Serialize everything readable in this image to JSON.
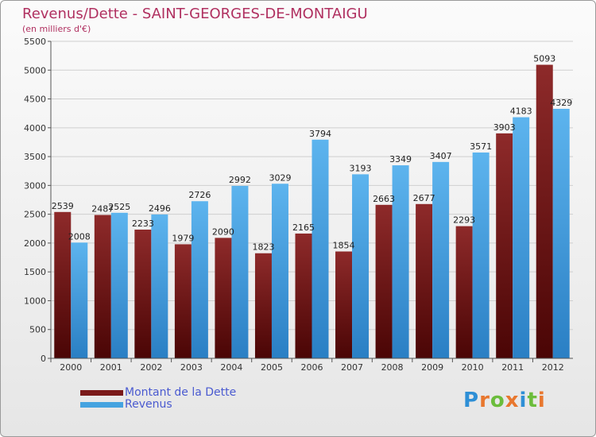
{
  "colors": {
    "dette": "#7a1a1a",
    "revenus": "#45a3e0",
    "title": "#b03060",
    "legend_text": "#4a5ad0"
  },
  "header": {
    "title": "Revenus/Dette - SAINT-GEORGES-DE-MONTAIGU",
    "subtitle": "(en milliers d'€)"
  },
  "legend": [
    {
      "label": "Montant de la Dette",
      "color": "#7a1a1a"
    },
    {
      "label": "Revenus",
      "color": "#45a3e0"
    }
  ],
  "logo": {
    "text": "Proxiti"
  },
  "chart_data": {
    "type": "bar",
    "title": "Revenus/Dette - SAINT-GEORGES-DE-MONTAIGU",
    "subtitle": "(en milliers d'€)",
    "xlabel": "",
    "ylabel": "",
    "categories": [
      "2000",
      "2001",
      "2002",
      "2003",
      "2004",
      "2005",
      "2006",
      "2007",
      "2008",
      "2009",
      "2010",
      "2011",
      "2012"
    ],
    "series": [
      {
        "name": "Montant de la Dette",
        "color": "#7a1a1a",
        "values": [
          2539,
          2487,
          2233,
          1979,
          2090,
          1823,
          2165,
          1854,
          2663,
          2677,
          2293,
          3903,
          5093
        ],
        "labels": [
          "2539",
          "2487",
          "2233",
          "1979",
          "2090",
          "1823",
          "2165",
          "1854",
          "2663",
          "2677",
          "2293",
          "3903",
          "5093"
        ]
      },
      {
        "name": "Revenus",
        "color": "#45a3e0",
        "values": [
          2008,
          2525,
          2496,
          2726,
          2992,
          3029,
          3794,
          3193,
          3349,
          3407,
          3571,
          4183,
          4329
        ],
        "labels": [
          "2008",
          "2525",
          "2496",
          "2726",
          "2992",
          "3029",
          "3794",
          "3193",
          "3349",
          "3407",
          "3571",
          "4183",
          "4329"
        ]
      }
    ],
    "ylim": [
      0,
      5500
    ],
    "yticks": [
      0,
      500,
      1000,
      1500,
      2000,
      2500,
      3000,
      3500,
      4000,
      4500,
      5000,
      5500
    ],
    "grid": true,
    "legend_position": "bottom-left"
  }
}
